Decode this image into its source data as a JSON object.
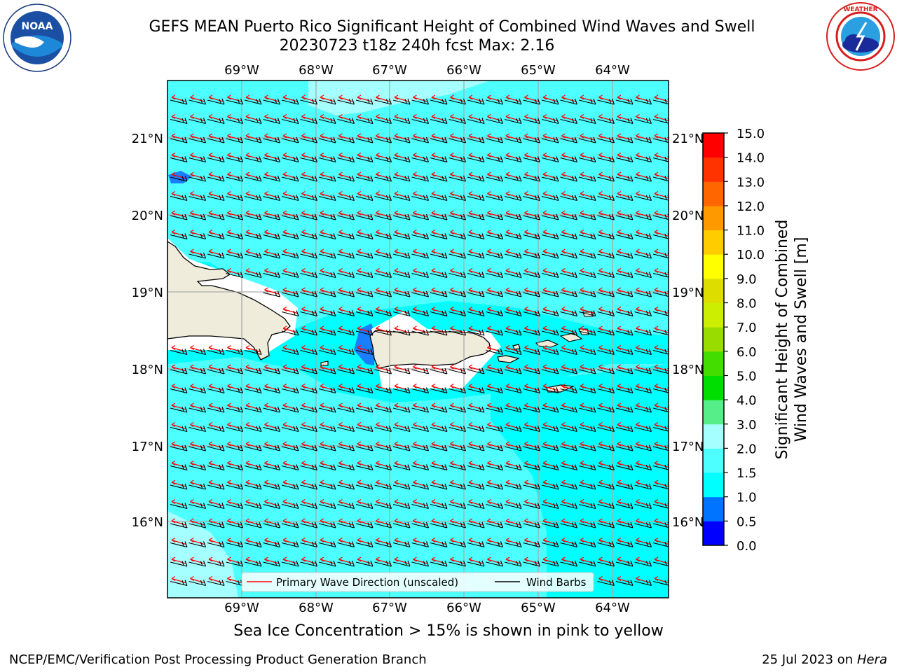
{
  "header": {
    "title_line1": "GEFS MEAN Puerto Rico Significant Height of Combined Wind Waves and Swell",
    "title_line2": "20230723 t18z 240h fcst   Max: 2.16"
  },
  "logos": {
    "noaa": {
      "text": "NOAA",
      "ring_text": "NATIONAL OCEANIC AND ATMOSPHERIC ADMINISTRATION · U.S. DEPARTMENT OF COMMERCE"
    },
    "nws": {
      "ring_text": "NATIONAL WEATHER SERVICE"
    }
  },
  "map": {
    "lon_labels": [
      "69°W",
      "68°W",
      "67°W",
      "66°W",
      "65°W",
      "64°W"
    ],
    "lat_labels": [
      "21°N",
      "20°N",
      "19°N",
      "18°N",
      "17°N",
      "16°N"
    ],
    "legend": {
      "wave_direction": "Primary Wave Direction (unscaled)",
      "wind_barbs": "Wind Barbs"
    },
    "colors": {
      "ocean_low": "#00ffff",
      "ocean_mid": "#4dffff",
      "ocean_high": "#a6ffff",
      "land": "#efecdc",
      "wave_arrow": "#ff0000",
      "wind_barb": "#000000"
    }
  },
  "colorbar": {
    "label_line1": "Significant Height of Combined",
    "label_line2": "Wind Waves and Swell [m]",
    "ticks": [
      "0.0",
      "0.5",
      "1.0",
      "1.5",
      "2.0",
      "3.0",
      "4.0",
      "5.0",
      "6.0",
      "7.0",
      "8.0",
      "9.0",
      "10.0",
      "11.0",
      "12.0",
      "13.0",
      "14.0",
      "15.0"
    ],
    "colors": [
      "#0000ff",
      "#0073ff",
      "#00ffff",
      "#4dffff",
      "#a6ffff",
      "#55ee88",
      "#00dd00",
      "#44dd00",
      "#99dd00",
      "#ccee00",
      "#dddd00",
      "#ffff00",
      "#ffcc00",
      "#ff9900",
      "#ff6600",
      "#ff3300",
      "#ff0000"
    ]
  },
  "subtitle": "Sea Ice Concentration > 15% is shown in pink to yellow",
  "footer": {
    "left": "NCEP/EMC/Verification Post Processing Product Generation Branch",
    "right_date": "25 Jul 2023 on",
    "right_host": "Hera"
  }
}
